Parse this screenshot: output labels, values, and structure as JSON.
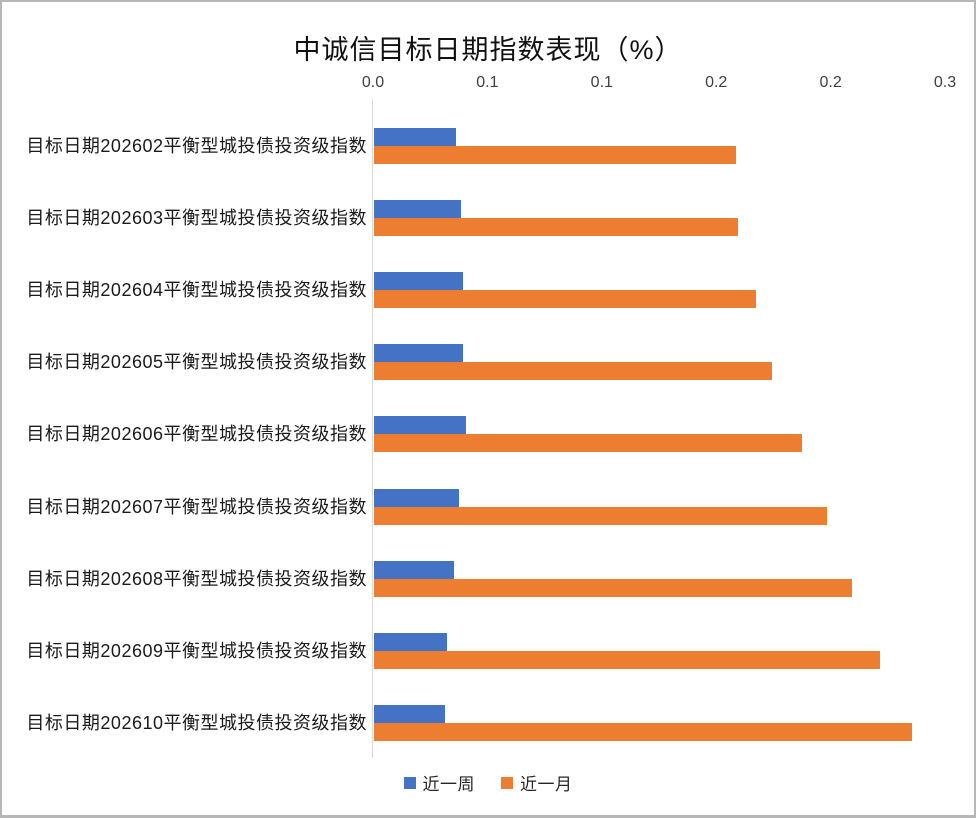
{
  "title": "中诚信目标日期指数表现（%）",
  "legend": {
    "items": [
      {
        "label": "近一周",
        "color": "#4472C4"
      },
      {
        "label": "近一月",
        "color": "#ED7D31"
      }
    ],
    "position": "bottom"
  },
  "axis": {
    "tick_labels_displayed": [
      "0.0",
      "0.1",
      "0.1",
      "0.2",
      "0.2",
      "0.3"
    ],
    "tick_values": [
      0,
      0.05,
      0.1,
      0.15,
      0.2,
      0.25
    ],
    "min": 0,
    "max": 0.25,
    "line_color": "#d9d9d9"
  },
  "chart_data": {
    "type": "bar",
    "orientation": "horizontal",
    "title": "中诚信目标日期指数表现（%）",
    "categories": [
      "目标日期202602平衡型城投债投资级指数",
      "目标日期202603平衡型城投债投资级指数",
      "目标日期202604平衡型城投债投资级指数",
      "目标日期202605平衡型城投债投资级指数",
      "目标日期202606平衡型城投债投资级指数",
      "目标日期202607平衡型城投债投资级指数",
      "目标日期202608平衡型城投债投资级指数",
      "目标日期202609平衡型城投债投资级指数",
      "目标日期202610平衡型城投债投资级指数"
    ],
    "series": [
      {
        "name": "近一周",
        "color": "#4472C4",
        "values": [
          0.036,
          0.038,
          0.039,
          0.039,
          0.04,
          0.037,
          0.035,
          0.032,
          0.031
        ]
      },
      {
        "name": "近一月",
        "color": "#ED7D31",
        "values": [
          0.158,
          0.159,
          0.167,
          0.174,
          0.187,
          0.198,
          0.209,
          0.221,
          0.235
        ]
      }
    ],
    "xlabel": "",
    "ylabel": "",
    "xlim": [
      0,
      0.25
    ],
    "x_tick_labels_displayed": [
      "0.0",
      "0.1",
      "0.1",
      "0.2",
      "0.2",
      "0.3"
    ],
    "grid": false,
    "legend_position": "bottom"
  }
}
